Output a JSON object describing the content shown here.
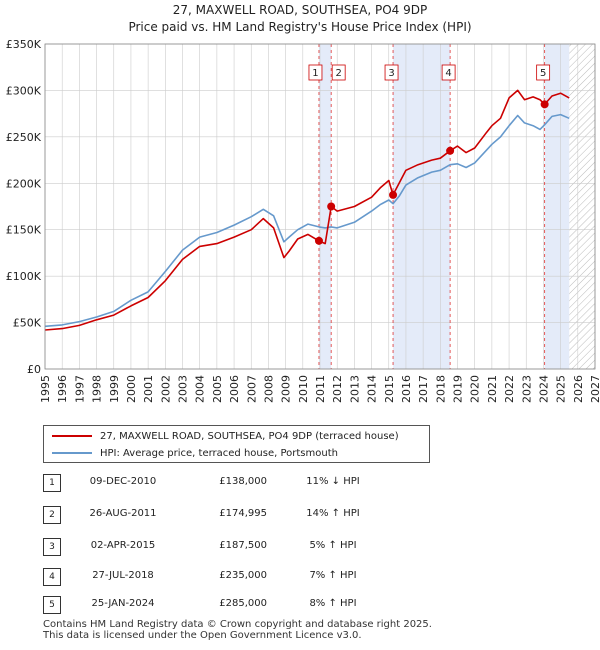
{
  "chart_data": {
    "type": "line",
    "title": "27, MAXWELL ROAD, SOUTHSEA, PO4 9DP",
    "subtitle": "Price paid vs. HM Land Registry's House Price Index (HPI)",
    "xlim": [
      1995,
      2027
    ],
    "ylim": [
      0,
      350000
    ],
    "y_ticks": [
      0,
      50000,
      100000,
      150000,
      200000,
      250000,
      300000,
      350000
    ],
    "y_tick_labels": [
      "£0",
      "£50K",
      "£100K",
      "£150K",
      "£200K",
      "£250K",
      "£300K",
      "£350K"
    ],
    "x_ticks": [
      1995,
      1996,
      1997,
      1998,
      1999,
      2000,
      2001,
      2002,
      2003,
      2004,
      2005,
      2006,
      2007,
      2008,
      2009,
      2010,
      2011,
      2012,
      2013,
      2014,
      2015,
      2016,
      2017,
      2018,
      2019,
      2020,
      2021,
      2022,
      2023,
      2024,
      2025,
      2026,
      2027
    ],
    "x_tick_labels": [
      "1995",
      "1996",
      "1997",
      "1998",
      "1999",
      "2000",
      "2001",
      "2002",
      "2003",
      "2004",
      "2005",
      "2006",
      "2007",
      "2008",
      "2009",
      "2010",
      "2011",
      "2012",
      "2013",
      "2014",
      "2015",
      "2016",
      "2017",
      "2018",
      "2019",
      "2020",
      "2021",
      "2022",
      "2023",
      "2024",
      "2025",
      "2026",
      "2027"
    ],
    "grid": true,
    "data_end": 2025.5,
    "shaded_spans": [
      [
        2010.94,
        2011.65
      ],
      [
        2015.25,
        2018.57
      ],
      [
        2024.07,
        2025.5
      ]
    ],
    "series": [
      {
        "name": "27, MAXWELL ROAD, SOUTHSEA, PO4 9DP (terraced house)",
        "color": "#cc0000",
        "x": [
          1995,
          1996,
          1997,
          1998,
          1999,
          2000,
          2001,
          2002,
          2003,
          2004,
          2005,
          2006,
          2007,
          2007.7,
          2008.3,
          2008.9,
          2009.2,
          2009.7,
          2010.3,
          2010.94,
          2011.3,
          2011.65,
          2012,
          2013,
          2014,
          2014.5,
          2015,
          2015.25,
          2015.6,
          2016,
          2016.7,
          2017.5,
          2018,
          2018.57,
          2019,
          2019.5,
          2020,
          2020.7,
          2021,
          2021.5,
          2022,
          2022.5,
          2022.9,
          2023.4,
          2023.8,
          2024.07,
          2024.5,
          2025,
          2025.5
        ],
        "y": [
          42000,
          43500,
          47000,
          53000,
          58000,
          68000,
          77000,
          95000,
          118000,
          132000,
          135000,
          142000,
          150000,
          162000,
          152000,
          120000,
          127000,
          140000,
          145000,
          138000,
          135000,
          174995,
          170000,
          175000,
          185000,
          195000,
          203000,
          187500,
          200000,
          214000,
          220000,
          225000,
          227000,
          235000,
          240000,
          233000,
          238000,
          255000,
          262000,
          270000,
          292000,
          300000,
          290000,
          293000,
          290000,
          285000,
          294000,
          297000,
          292000
        ]
      },
      {
        "name": "HPI: Average price, terraced house, Portsmouth",
        "color": "#6699cc",
        "x": [
          1995,
          1996,
          1997,
          1998,
          1999,
          2000,
          2001,
          2002,
          2003,
          2004,
          2005,
          2006,
          2007,
          2007.7,
          2008.3,
          2008.9,
          2009.2,
          2009.7,
          2010.3,
          2010.94,
          2011.3,
          2011.65,
          2012,
          2013,
          2014,
          2014.5,
          2015,
          2015.25,
          2015.6,
          2016,
          2016.7,
          2017.5,
          2018,
          2018.57,
          2019,
          2019.5,
          2020,
          2020.7,
          2021,
          2021.5,
          2022,
          2022.5,
          2022.9,
          2023.4,
          2023.8,
          2024.07,
          2024.5,
          2025,
          2025.5
        ],
        "y": [
          46000,
          47500,
          51000,
          56000,
          62000,
          74000,
          83000,
          105000,
          128000,
          142000,
          147000,
          155000,
          164000,
          172000,
          165000,
          137000,
          142000,
          150000,
          156000,
          153000,
          152000,
          153000,
          152000,
          158000,
          170000,
          177000,
          182000,
          178000,
          186000,
          198000,
          206000,
          212000,
          214000,
          220000,
          221000,
          217000,
          222000,
          236000,
          242000,
          250000,
          262000,
          273000,
          265000,
          262000,
          258000,
          263000,
          272000,
          274000,
          270000
        ]
      }
    ],
    "markers": [
      {
        "label": "1",
        "x": 2010.94,
        "y": 138000,
        "date": "09-DEC-2010",
        "price": "£138,000",
        "hpi": "11% ↓ HPI"
      },
      {
        "label": "2",
        "x": 2011.65,
        "y": 174995,
        "date": "26-AUG-2011",
        "price": "£174,995",
        "hpi": "14% ↑ HPI"
      },
      {
        "label": "3",
        "x": 2015.25,
        "y": 187500,
        "date": "02-APR-2015",
        "price": "£187,500",
        "hpi": "5% ↑ HPI"
      },
      {
        "label": "4",
        "x": 2018.57,
        "y": 235000,
        "date": "27-JUL-2018",
        "price": "£235,000",
        "hpi": "7% ↑ HPI"
      },
      {
        "label": "5",
        "x": 2024.07,
        "y": 285000,
        "date": "25-JAN-2024",
        "price": "£285,000",
        "hpi": "8% ↑ HPI"
      }
    ]
  },
  "legend": {
    "property_label": "27, MAXWELL ROAD, SOUTHSEA, PO4 9DP (terraced house)",
    "hpi_label": "HPI: Average price, terraced house, Portsmouth"
  },
  "sales": [
    {
      "num": "1",
      "date": "09-DEC-2010",
      "price": "£138,000",
      "hpi": "11% ↓ HPI"
    },
    {
      "num": "2",
      "date": "26-AUG-2011",
      "price": "£174,995",
      "hpi": "14% ↑ HPI"
    },
    {
      "num": "3",
      "date": "02-APR-2015",
      "price": "£187,500",
      "hpi": "5% ↑ HPI"
    },
    {
      "num": "4",
      "date": "27-JUL-2018",
      "price": "£235,000",
      "hpi": "7% ↑ HPI"
    },
    {
      "num": "5",
      "date": "25-JAN-2024",
      "price": "£285,000",
      "hpi": "8% ↑ HPI"
    }
  ],
  "footer": {
    "line1": "Contains HM Land Registry data © Crown copyright and database right 2025.",
    "line2": "This data is licensed under the Open Government Licence v3.0."
  },
  "colors": {
    "property": "#cc0000",
    "hpi": "#6699cc",
    "shade": "#dde6f7",
    "grid": "#cccccc"
  }
}
